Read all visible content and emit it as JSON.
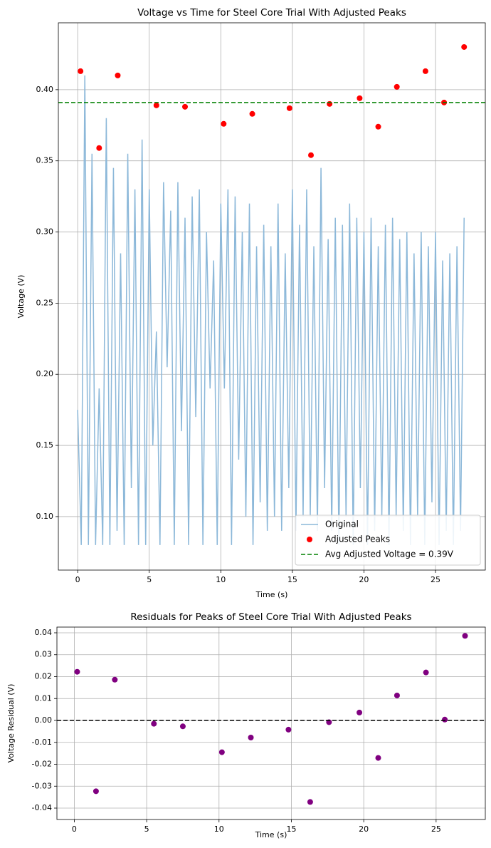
{
  "chart_data": [
    {
      "type": "line",
      "title": "Voltage vs Time for Steel Core Trial With Adjusted Peaks",
      "xlabel": "Time (s)",
      "ylabel": "Voltage (V)",
      "xlim": [
        -1.35,
        28.48
      ],
      "ylim": [
        0.0624,
        0.447
      ],
      "xticks": [
        0,
        5,
        10,
        15,
        20,
        25
      ],
      "yticks": [
        {
          "value": 0.1,
          "label": "0.10"
        },
        0.15,
        {
          "value": 0.2,
          "label": "0.20"
        },
        0.25,
        {
          "value": 0.3,
          "label": "0.30"
        },
        0.35,
        {
          "value": 0.4,
          "label": "0.40"
        }
      ],
      "grid": true,
      "legend": "lower right",
      "series": [
        {
          "name": "Original",
          "type": "line",
          "color": "#8cb8d9",
          "x": [
            0,
            0.25,
            0.5,
            0.75,
            1,
            1.25,
            1.5,
            1.75,
            2,
            2.25,
            2.5,
            2.75,
            3,
            3.25,
            3.5,
            3.75,
            4,
            4.25,
            4.5,
            4.75,
            5,
            5.25,
            5.5,
            5.75,
            6,
            6.25,
            6.5,
            6.75,
            7,
            7.25,
            7.5,
            7.75,
            8,
            8.25,
            8.5,
            8.75,
            9,
            9.25,
            9.5,
            9.75,
            10,
            10.25,
            10.5,
            10.75,
            11,
            11.25,
            11.5,
            11.75,
            12,
            12.25,
            12.5,
            12.75,
            13,
            13.25,
            13.5,
            13.75,
            14,
            14.25,
            14.5,
            14.75,
            15,
            15.25,
            15.5,
            15.75,
            16,
            16.25,
            16.5,
            16.75,
            17,
            17.25,
            17.5,
            17.75,
            18,
            18.25,
            18.5,
            18.75,
            19,
            19.25,
            19.5,
            19.75,
            20,
            20.25,
            20.5,
            20.75,
            21,
            21.25,
            21.5,
            21.75,
            22,
            22.25,
            22.5,
            22.75,
            23,
            23.25,
            23.5,
            23.75,
            24,
            24.25,
            24.5,
            24.75,
            25,
            25.25,
            25.5,
            25.75,
            26,
            26.25,
            26.5,
            26.75,
            27
          ],
          "values": [
            0.175,
            0.08,
            0.41,
            0.08,
            0.355,
            0.08,
            0.19,
            0.08,
            0.38,
            0.08,
            0.345,
            0.09,
            0.285,
            0.08,
            0.355,
            0.12,
            0.33,
            0.08,
            0.365,
            0.08,
            0.33,
            0.15,
            0.23,
            0.08,
            0.335,
            0.205,
            0.315,
            0.08,
            0.335,
            0.16,
            0.31,
            0.08,
            0.325,
            0.17,
            0.33,
            0.08,
            0.3,
            0.19,
            0.28,
            0.08,
            0.32,
            0.19,
            0.33,
            0.08,
            0.325,
            0.14,
            0.3,
            0.1,
            0.32,
            0.08,
            0.29,
            0.11,
            0.305,
            0.09,
            0.29,
            0.1,
            0.32,
            0.09,
            0.285,
            0.12,
            0.33,
            0.09,
            0.305,
            0.1,
            0.33,
            0.1,
            0.29,
            0.09,
            0.345,
            0.12,
            0.295,
            0.09,
            0.31,
            0.08,
            0.305,
            0.1,
            0.32,
            0.08,
            0.31,
            0.12,
            0.3,
            0.08,
            0.31,
            0.09,
            0.29,
            0.1,
            0.305,
            0.08,
            0.31,
            0.1,
            0.295,
            0.09,
            0.3,
            0.08,
            0.285,
            0.1,
            0.3,
            0.08,
            0.29,
            0.11,
            0.3,
            0.08,
            0.28,
            0.09,
            0.285,
            0.08,
            0.29,
            0.09,
            0.31
          ]
        },
        {
          "name": "Adjusted Peaks",
          "type": "scatter",
          "color": "#ff0000",
          "x": [
            0.2,
            1.5,
            2.8,
            5.5,
            7.5,
            10.2,
            12.2,
            14.8,
            16.3,
            17.6,
            19.7,
            21.0,
            22.3,
            24.3,
            25.6,
            27.0
          ],
          "values": [
            0.413,
            0.359,
            0.41,
            0.389,
            0.388,
            0.376,
            0.383,
            0.387,
            0.354,
            0.39,
            0.394,
            0.374,
            0.402,
            0.413,
            0.391,
            0.43
          ]
        },
        {
          "name": "Avg Adjusted Voltage = 0.39V",
          "type": "hline",
          "color": "#008000",
          "value": 0.391
        }
      ]
    },
    {
      "type": "scatter",
      "title": "Residuals for Peaks of Steel Core Trial With Adjusted Peaks",
      "xlabel": "Time (s)",
      "ylabel": "Voltage Residual (V)",
      "xlim": [
        -1.2,
        28.4
      ],
      "ylim": [
        -0.0452,
        0.0426
      ],
      "xticks": [
        0,
        5,
        10,
        15,
        20,
        25
      ],
      "yticks": [
        -0.04,
        -0.03,
        -0.02,
        -0.01,
        {
          "value": 0,
          "label": "0.00"
        },
        0.01,
        0.02,
        0.03,
        0.04
      ],
      "grid": true,
      "series": [
        {
          "type": "scatter",
          "color": "#800080",
          "x": [
            0.2,
            1.5,
            2.8,
            5.5,
            7.5,
            10.2,
            12.2,
            14.8,
            16.3,
            17.6,
            19.7,
            21.0,
            22.3,
            24.3,
            25.6,
            27.0
          ],
          "values": [
            0.0222,
            -0.0323,
            0.0186,
            -0.0015,
            -0.0027,
            -0.0145,
            -0.0078,
            -0.0042,
            -0.0372,
            -0.0008,
            0.0036,
            -0.0171,
            0.0114,
            0.0219,
            0.0004,
            0.0386
          ]
        },
        {
          "type": "hline",
          "color": "#000000",
          "value": 0
        }
      ]
    }
  ]
}
